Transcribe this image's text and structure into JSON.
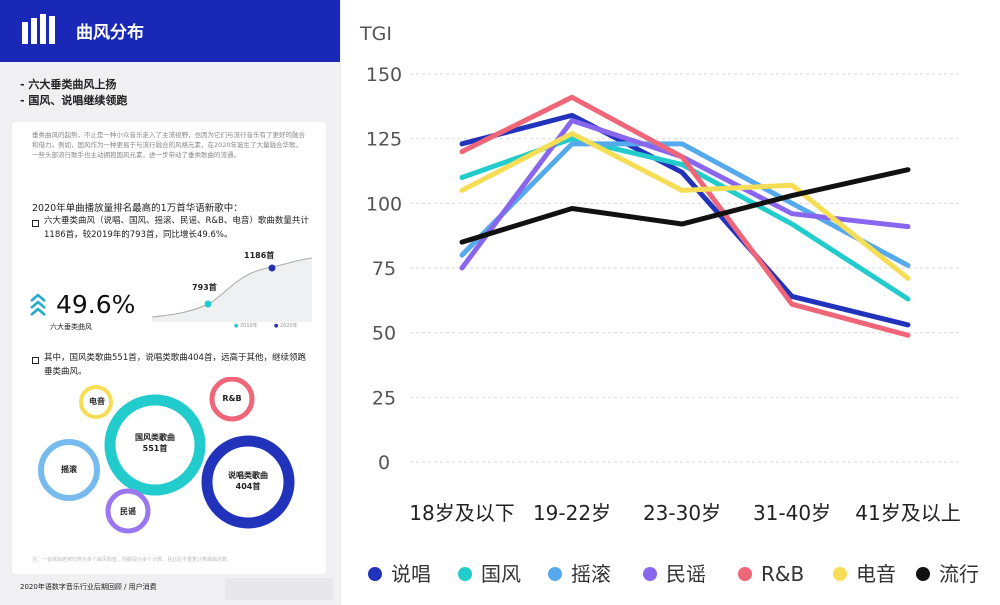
{
  "card": {
    "header_title": "曲风分布",
    "bullets": [
      "- 六大垂类曲风上扬",
      "- 国风、说唱继续领跑"
    ],
    "intro": "垂类曲风的起势，不止是一种小众音乐走入了主流视野，也因为它们与流行音乐有了更好的融合和借力。例如，国风作为一种更易于与流行融合的风格元素，在2020年诞生了大量融合华歌，一些头部流行歌手也主动拥抱国风元素，进一步带动了垂类歌曲的流通。",
    "subhead": "2020年单曲播放量排名最高的1万首华语新歌中：",
    "point1": "六大垂类曲风（说唱、国风、摇滚、民谣、R&B、电音）歌曲数量共计1186首，较2019年的793首，同比增长49.6%。",
    "percent": "49.6%",
    "percent_label": "六大垂类曲风",
    "mini_2019_label": "793首",
    "mini_2020_label": "1186首",
    "mini_legend_2019": "2019年",
    "mini_legend_2020": "2020年",
    "point2": "其中，国风类歌曲551首，说唱类歌曲404首，远高于其他，继续领跑垂类曲风。",
    "bubbles": {
      "guofeng": [
        "国风类歌曲",
        "551首"
      ],
      "shuochang": [
        "说唱类歌曲",
        "404首"
      ],
      "dianyin": "电音",
      "rnb": "R&B",
      "yaogun": "摇滚",
      "minyao": "民谣"
    },
    "note": "注：一首歌曲若被归类为多个曲风标签，则都视为多个计数，且此处不重复计算歌曲总数。",
    "footer": "2020年语数字音乐行业后期回顾 / 用户消费"
  },
  "chart_data": {
    "type": "line",
    "ylabel": "TGI",
    "ylim": [
      0,
      150
    ],
    "yticks": [
      0,
      25,
      50,
      75,
      100,
      125,
      150
    ],
    "grid": "horizontal-dashed",
    "legend_position": "bottom",
    "categories": [
      "18岁及以下",
      "19-22岁",
      "23-30岁",
      "31-40岁",
      "41岁及以上"
    ],
    "series": [
      {
        "name": "说唱",
        "color": "#2233bb",
        "values": [
          123,
          134,
          112,
          64,
          53
        ]
      },
      {
        "name": "国风",
        "color": "#22cccc",
        "values": [
          110,
          125,
          115,
          92,
          63
        ]
      },
      {
        "name": "摇滚",
        "color": "#55aaee",
        "values": [
          80,
          123,
          123,
          100,
          76
        ]
      },
      {
        "name": "民谣",
        "color": "#8866ee",
        "values": [
          75,
          132,
          118,
          96,
          91
        ]
      },
      {
        "name": "R&B",
        "color": "#ee6677",
        "values": [
          120,
          141,
          118,
          61,
          49
        ]
      },
      {
        "name": "电音",
        "color": "#f5dd55",
        "values": [
          105,
          127,
          105,
          107,
          71
        ]
      },
      {
        "name": "流行",
        "color": "#111111",
        "values": [
          85,
          98,
          92,
          103,
          113
        ]
      }
    ]
  }
}
